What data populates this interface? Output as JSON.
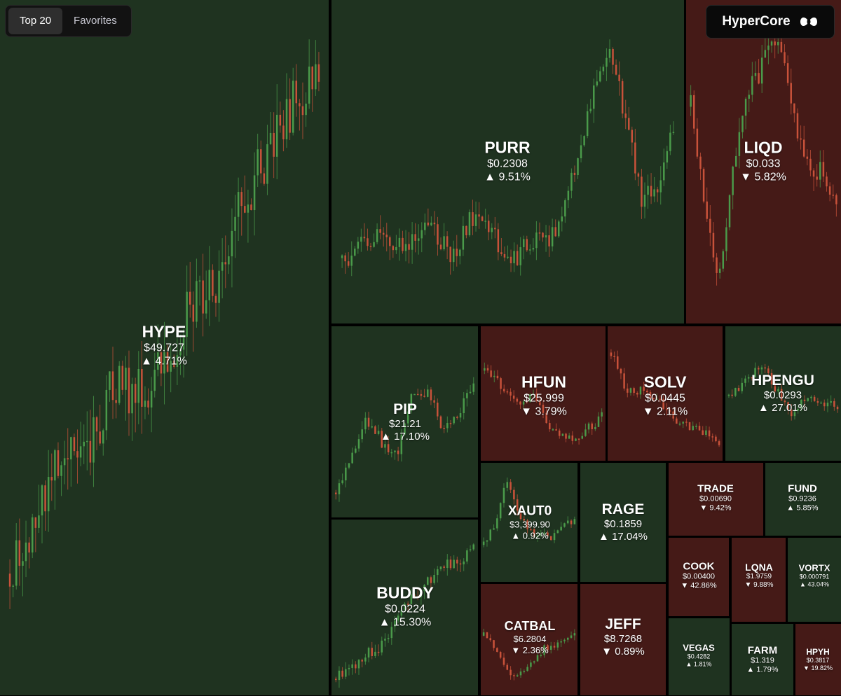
{
  "header": {
    "tabs": [
      {
        "label": "Top 20",
        "active": true
      },
      {
        "label": "Favorites",
        "active": false
      }
    ],
    "brand": "HyperCore"
  },
  "colors": {
    "up_bg": "#1f3320",
    "down_bg": "#451a17",
    "candle_up": "#4a9a4a",
    "candle_down": "#c8523a"
  },
  "tiles": [
    {
      "symbol": "HYPE",
      "price": "$49.727",
      "change": "▲ 4.71%",
      "direction": "up"
    },
    {
      "symbol": "PURR",
      "price": "$0.2308",
      "change": "▲ 9.51%",
      "direction": "up"
    },
    {
      "symbol": "LIQD",
      "price": "$0.033",
      "change": "▼ 5.82%",
      "direction": "down"
    },
    {
      "symbol": "PIP",
      "price": "$21.21",
      "change": "▲ 17.10%",
      "direction": "up"
    },
    {
      "symbol": "HFUN",
      "price": "$25.999",
      "change": "▼ 3.79%",
      "direction": "down"
    },
    {
      "symbol": "SOLV",
      "price": "$0.0445",
      "change": "▼ 2.11%",
      "direction": "down"
    },
    {
      "symbol": "HPENGU",
      "price": "$0.0293",
      "change": "▲ 27.01%",
      "direction": "up"
    },
    {
      "symbol": "XAUT0",
      "price": "$3,399.90",
      "change": "▲ 0.92%",
      "direction": "up"
    },
    {
      "symbol": "RAGE",
      "price": "$0.1859",
      "change": "▲ 17.04%",
      "direction": "up"
    },
    {
      "symbol": "TRADE",
      "price": "$0.00690",
      "change": "▼ 9.42%",
      "direction": "down"
    },
    {
      "symbol": "FUND",
      "price": "$0.9236",
      "change": "▲ 5.85%",
      "direction": "up"
    },
    {
      "symbol": "BUDDY",
      "price": "$0.0224",
      "change": "▲ 15.30%",
      "direction": "up"
    },
    {
      "symbol": "COOK",
      "price": "$0.00400",
      "change": "▼ 42.86%",
      "direction": "down"
    },
    {
      "symbol": "LQNA",
      "price": "$1.9759",
      "change": "▼ 9.88%",
      "direction": "down"
    },
    {
      "symbol": "VORTX",
      "price": "$0.000791",
      "change": "▲ 43.04%",
      "direction": "up"
    },
    {
      "symbol": "CATBAL",
      "price": "$6.2804",
      "change": "▼ 2.36%",
      "direction": "down"
    },
    {
      "symbol": "JEFF",
      "price": "$8.7268",
      "change": "▼ 0.89%",
      "direction": "down"
    },
    {
      "symbol": "VEGAS",
      "price": "$0.4282",
      "change": "▲ 1.81%",
      "direction": "up"
    },
    {
      "symbol": "FARM",
      "price": "$1.319",
      "change": "▲ 1.79%",
      "direction": "up"
    },
    {
      "symbol": "HPYH",
      "price": "$0.3817",
      "change": "▼ 19.82%",
      "direction": "down"
    }
  ]
}
